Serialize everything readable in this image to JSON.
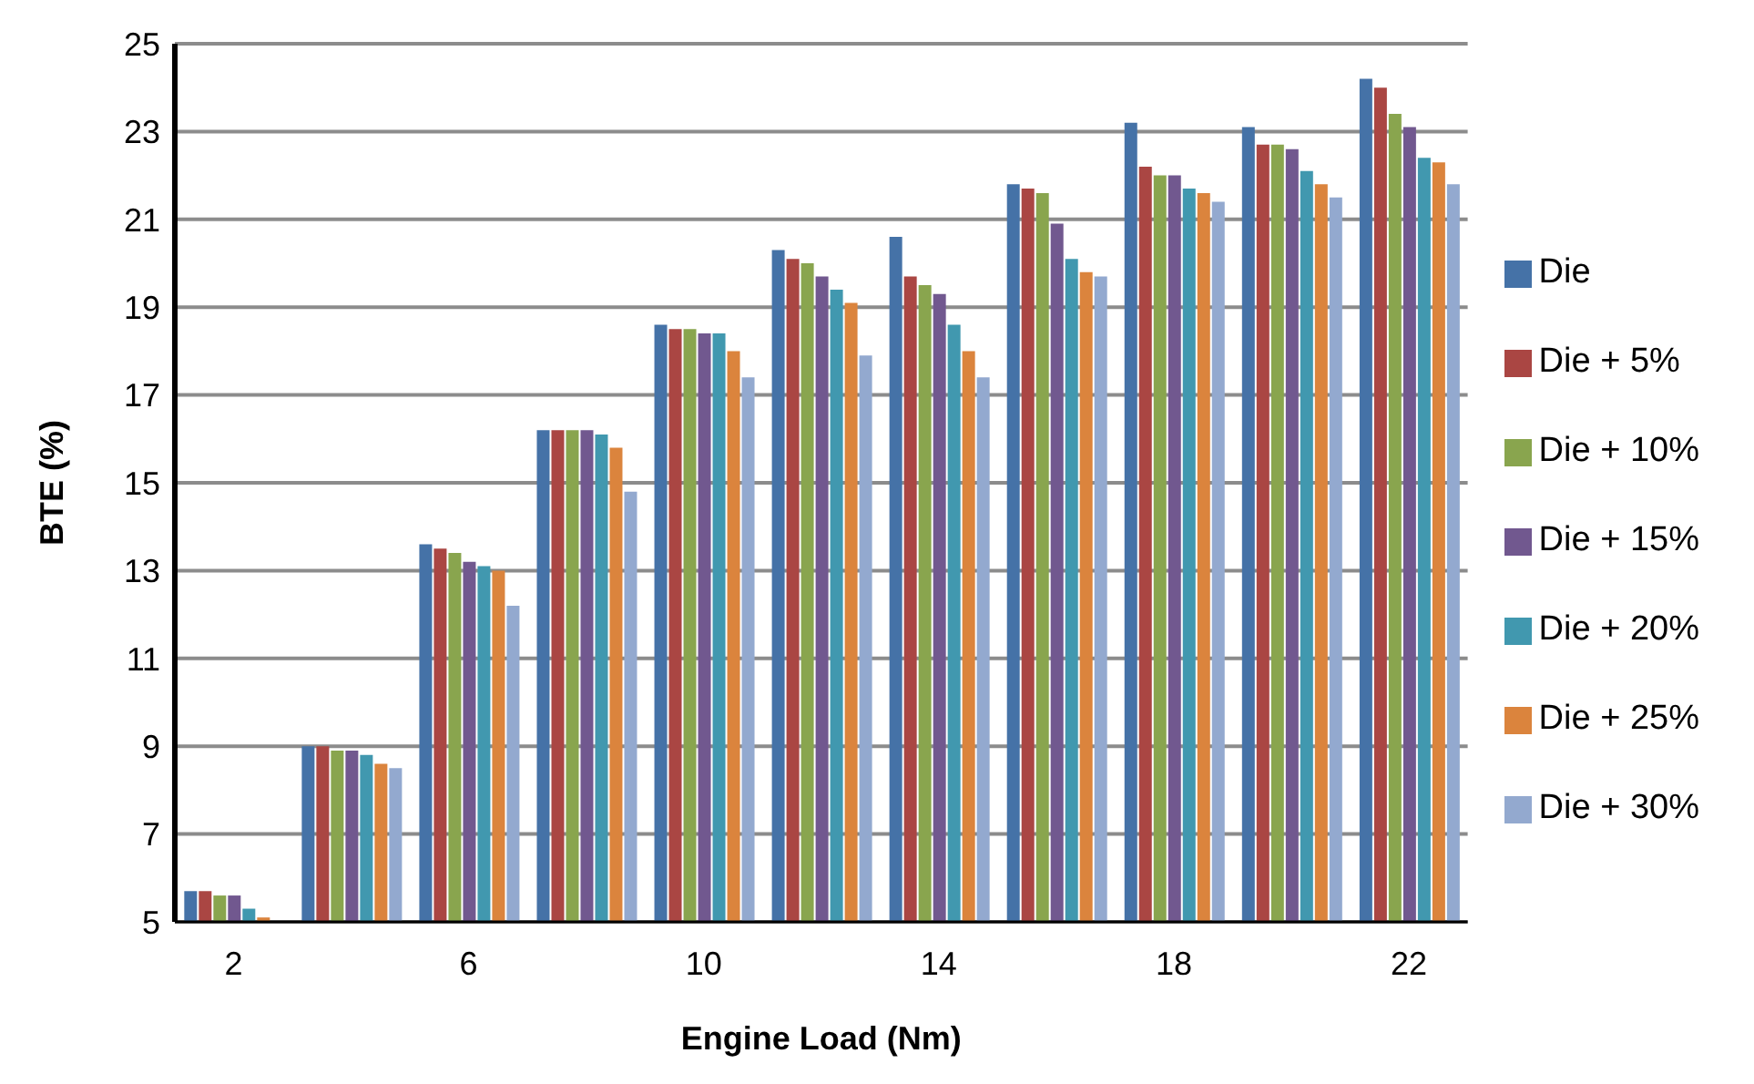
{
  "chart_data": {
    "type": "bar",
    "xlabel": "Engine Load (Nm)",
    "ylabel": "BTE (%)",
    "categories": [
      "2",
      null,
      "6",
      null,
      "10",
      null,
      "14",
      null,
      "18",
      null,
      "22"
    ],
    "series": [
      {
        "name": "Die",
        "color": "#4572a7",
        "values": [
          5.7,
          9.0,
          13.6,
          16.2,
          18.6,
          20.3,
          20.6,
          21.8,
          23.2,
          23.1,
          24.2
        ]
      },
      {
        "name": "Die + 5%",
        "color": "#aa4643",
        "values": [
          5.7,
          9.0,
          13.5,
          16.2,
          18.5,
          20.1,
          19.7,
          21.7,
          22.2,
          22.7,
          24.0
        ]
      },
      {
        "name": "Die + 10%",
        "color": "#89a54e",
        "values": [
          5.6,
          8.9,
          13.4,
          16.2,
          18.5,
          20.0,
          19.5,
          21.6,
          22.0,
          22.7,
          23.4
        ]
      },
      {
        "name": "Die + 15%",
        "color": "#71588f",
        "values": [
          5.6,
          8.9,
          13.2,
          16.2,
          18.4,
          19.7,
          19.3,
          20.9,
          22.0,
          22.6,
          23.1
        ]
      },
      {
        "name": "Die + 20%",
        "color": "#4198af",
        "values": [
          5.3,
          8.8,
          13.1,
          16.1,
          18.4,
          19.4,
          18.6,
          20.1,
          21.7,
          22.1,
          22.4
        ]
      },
      {
        "name": "Die + 25%",
        "color": "#db843d",
        "values": [
          5.1,
          8.6,
          13.0,
          15.8,
          18.0,
          19.1,
          18.0,
          19.8,
          21.6,
          21.8,
          22.3
        ]
      },
      {
        "name": "Die + 30%",
        "color": "#93a9cf",
        "values": [
          5.0,
          8.5,
          12.2,
          14.8,
          17.4,
          17.9,
          17.4,
          19.7,
          21.4,
          21.5,
          21.8
        ]
      }
    ],
    "ylim": [
      5,
      25
    ],
    "yticks": [
      5,
      7,
      9,
      11,
      13,
      15,
      17,
      19,
      21,
      23,
      25
    ],
    "grid": "y",
    "legend": "right"
  }
}
